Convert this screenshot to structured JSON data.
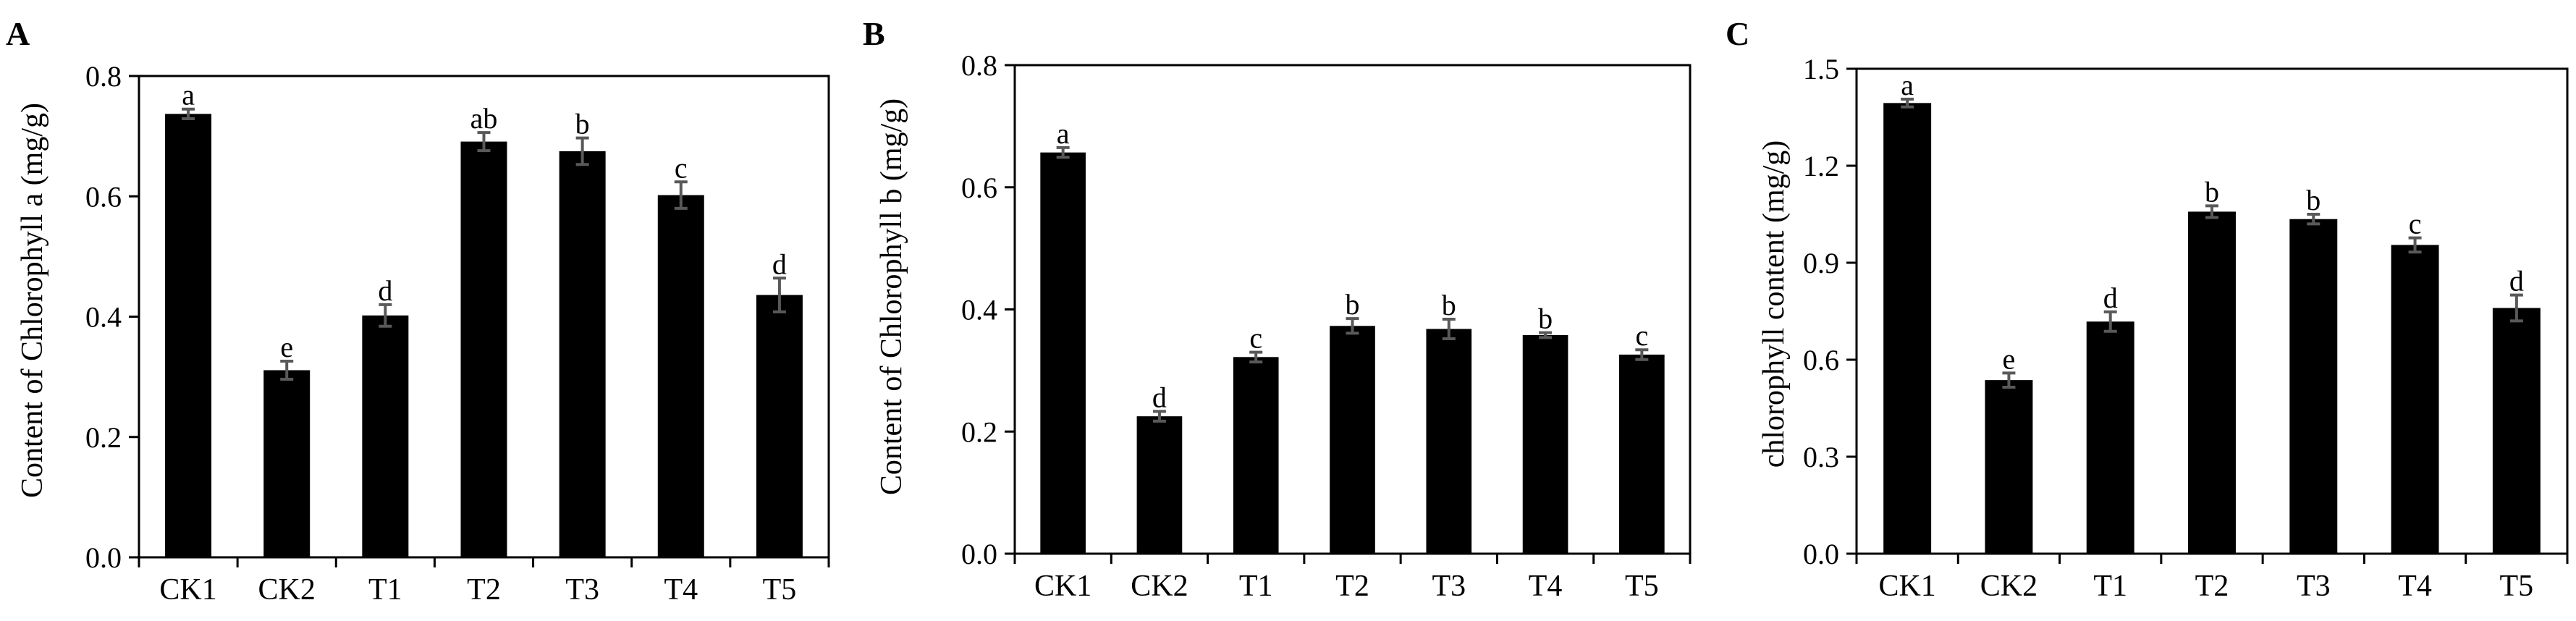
{
  "chart_data": [
    {
      "type": "bar",
      "panel": "A",
      "categories": [
        "CK1",
        "CK2",
        "T1",
        "T2",
        "T3",
        "T4",
        "T5"
      ],
      "values": [
        0.737,
        0.311,
        0.402,
        0.691,
        0.675,
        0.602,
        0.436
      ],
      "errors": [
        0.008,
        0.015,
        0.018,
        0.015,
        0.022,
        0.022,
        0.028
      ],
      "significance": [
        "a",
        "e",
        "d",
        "ab",
        "b",
        "c",
        "d"
      ],
      "ylabel": "Content of Chlorophyll a (mg/g)",
      "xlabel": "",
      "ylim": [
        0,
        0.8
      ],
      "yticks": [
        "0.0",
        "0.2",
        "0.4",
        "0.6",
        "0.8"
      ],
      "bar_color": "#000000",
      "error_color": "#595959",
      "grid": false
    },
    {
      "type": "bar",
      "panel": "B",
      "categories": [
        "CK1",
        "CK2",
        "T1",
        "T2",
        "T3",
        "T4",
        "T5"
      ],
      "values": [
        0.657,
        0.225,
        0.322,
        0.373,
        0.368,
        0.358,
        0.326
      ],
      "errors": [
        0.008,
        0.008,
        0.008,
        0.012,
        0.016,
        0.004,
        0.008
      ],
      "significance": [
        "a",
        "d",
        "c",
        "b",
        "b",
        "b",
        "c"
      ],
      "ylabel": "Content of Chlorophyll b (mg/g)",
      "xlabel": "",
      "ylim": [
        0,
        0.8
      ],
      "yticks": [
        "0.0",
        "0.2",
        "0.4",
        "0.6",
        "0.8"
      ],
      "bar_color": "#000000",
      "error_color": "#595959",
      "grid": false
    },
    {
      "type": "bar",
      "panel": "C",
      "categories": [
        "CK1",
        "CK2",
        "T1",
        "T2",
        "T3",
        "T4",
        "T5"
      ],
      "values": [
        1.394,
        0.537,
        0.718,
        1.058,
        1.035,
        0.955,
        0.76
      ],
      "errors": [
        0.012,
        0.022,
        0.03,
        0.018,
        0.015,
        0.022,
        0.04
      ],
      "significance": [
        "a",
        "e",
        "d",
        "b",
        "b",
        "c",
        "d"
      ],
      "ylabel": "chlorophyll content (mg/g)",
      "xlabel": "",
      "ylim": [
        0,
        1.5
      ],
      "yticks": [
        "0.0",
        "0.3",
        "0.6",
        "0.9",
        "1.2",
        "1.5"
      ],
      "bar_color": "#000000",
      "error_color": "#595959",
      "grid": false
    }
  ]
}
